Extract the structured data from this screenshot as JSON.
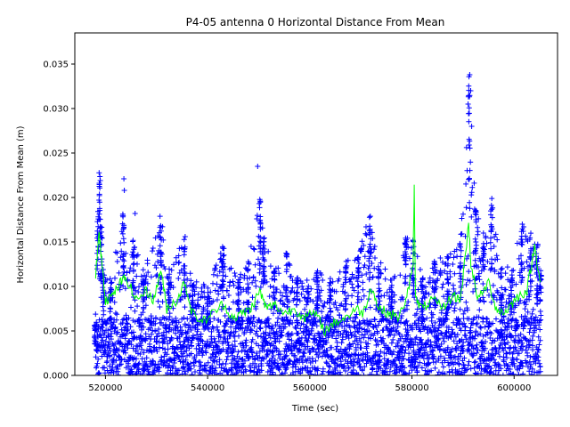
{
  "chart_data": {
    "type": "scatter",
    "title": "P4-05 antenna 0 Horizontal Distance From Mean",
    "xlabel": "Time (sec)",
    "ylabel": "Horizontal Distance From Mean (m)",
    "xlim": [
      514000,
      608500
    ],
    "ylim": [
      0,
      0.0385
    ],
    "x_ticks": [
      520000,
      540000,
      560000,
      580000,
      600000
    ],
    "x_tick_labels": [
      "520000",
      "540000",
      "560000",
      "580000",
      "600000"
    ],
    "y_ticks": [
      0.0,
      0.005,
      0.01,
      0.015,
      0.02,
      0.025,
      0.03,
      0.035
    ],
    "y_tick_labels": [
      "0.000",
      "0.005",
      "0.010",
      "0.015",
      "0.020",
      "0.025",
      "0.030",
      "0.035"
    ],
    "grid": false,
    "series": [
      {
        "marker": "plus",
        "color": "#0000ff",
        "description_range_x": [
          518000,
          605200
        ],
        "band_max_y": 0.0065,
        "upper_envelope": [
          [
            518000,
            0.006
          ],
          [
            518500,
            0.019
          ],
          [
            518900,
            0.0233
          ],
          [
            519200,
            0.018
          ],
          [
            519600,
            0.012
          ],
          [
            521000,
            0.011
          ],
          [
            523500,
            0.0185
          ],
          [
            525500,
            0.0155
          ],
          [
            527500,
            0.012
          ],
          [
            530800,
            0.018
          ],
          [
            532500,
            0.012
          ],
          [
            535500,
            0.016
          ],
          [
            537000,
            0.011
          ],
          [
            540000,
            0.01
          ],
          [
            543000,
            0.0145
          ],
          [
            546000,
            0.011
          ],
          [
            548000,
            0.013
          ],
          [
            550300,
            0.0205
          ],
          [
            551000,
            0.016
          ],
          [
            553000,
            0.012
          ],
          [
            555500,
            0.014
          ],
          [
            557500,
            0.011
          ],
          [
            559500,
            0.011
          ],
          [
            561500,
            0.012
          ],
          [
            564000,
            0.011
          ],
          [
            567000,
            0.013
          ],
          [
            569500,
            0.0135
          ],
          [
            571800,
            0.0185
          ],
          [
            573500,
            0.013
          ],
          [
            576000,
            0.011
          ],
          [
            578800,
            0.016
          ],
          [
            580300,
            0.0155
          ],
          [
            582000,
            0.011
          ],
          [
            584500,
            0.013
          ],
          [
            587000,
            0.0135
          ],
          [
            589500,
            0.015
          ],
          [
            591200,
            0.034
          ],
          [
            592500,
            0.019
          ],
          [
            594000,
            0.015
          ],
          [
            595500,
            0.0205
          ],
          [
            597500,
            0.012
          ],
          [
            599500,
            0.0125
          ],
          [
            601500,
            0.017
          ],
          [
            603200,
            0.0165
          ],
          [
            604500,
            0.015
          ],
          [
            605200,
            0.012
          ]
        ],
        "outliers": [
          [
            523600,
            0.0221
          ],
          [
            523700,
            0.0208
          ],
          [
            525800,
            0.0182
          ],
          [
            549800,
            0.0235
          ],
          [
            591000,
            0.0305
          ],
          [
            591300,
            0.0338
          ],
          [
            591500,
            0.032
          ],
          [
            591700,
            0.028
          ],
          [
            594000,
            0.016
          ],
          [
            601600,
            0.017
          ]
        ]
      },
      {
        "marker": "line",
        "color": "#00ff00",
        "points": [
          [
            518000,
            0.0105
          ],
          [
            518700,
            0.016
          ],
          [
            519200,
            0.0135
          ],
          [
            520000,
            0.0085
          ],
          [
            521500,
            0.009
          ],
          [
            523000,
            0.0105
          ],
          [
            524000,
            0.011
          ],
          [
            526000,
            0.0085
          ],
          [
            528000,
            0.0095
          ],
          [
            529500,
            0.0085
          ],
          [
            530800,
            0.012
          ],
          [
            532000,
            0.0075
          ],
          [
            534000,
            0.0085
          ],
          [
            535500,
            0.0105
          ],
          [
            537000,
            0.007
          ],
          [
            539000,
            0.006
          ],
          [
            541000,
            0.007
          ],
          [
            543000,
            0.008
          ],
          [
            545000,
            0.0065
          ],
          [
            547000,
            0.007
          ],
          [
            548500,
            0.0075
          ],
          [
            550200,
            0.0095
          ],
          [
            551500,
            0.0075
          ],
          [
            553000,
            0.008
          ],
          [
            555000,
            0.007
          ],
          [
            557000,
            0.0075
          ],
          [
            559000,
            0.0065
          ],
          [
            561000,
            0.007
          ],
          [
            563000,
            0.005
          ],
          [
            565000,
            0.006
          ],
          [
            567000,
            0.0065
          ],
          [
            569000,
            0.0075
          ],
          [
            570500,
            0.007
          ],
          [
            572000,
            0.01
          ],
          [
            573500,
            0.0075
          ],
          [
            575500,
            0.007
          ],
          [
            577500,
            0.0065
          ],
          [
            579000,
            0.009
          ],
          [
            580200,
            0.012
          ],
          [
            580450,
            0.021
          ],
          [
            580700,
            0.0085
          ],
          [
            582000,
            0.0075
          ],
          [
            584000,
            0.0085
          ],
          [
            586000,
            0.0075
          ],
          [
            588000,
            0.009
          ],
          [
            589500,
            0.0085
          ],
          [
            591100,
            0.017
          ],
          [
            591600,
            0.012
          ],
          [
            593000,
            0.0085
          ],
          [
            595000,
            0.0105
          ],
          [
            596500,
            0.0075
          ],
          [
            598000,
            0.007
          ],
          [
            599500,
            0.008
          ],
          [
            601000,
            0.009
          ],
          [
            602500,
            0.0095
          ],
          [
            604000,
            0.0145
          ],
          [
            605200,
            0.0105
          ]
        ]
      }
    ]
  }
}
